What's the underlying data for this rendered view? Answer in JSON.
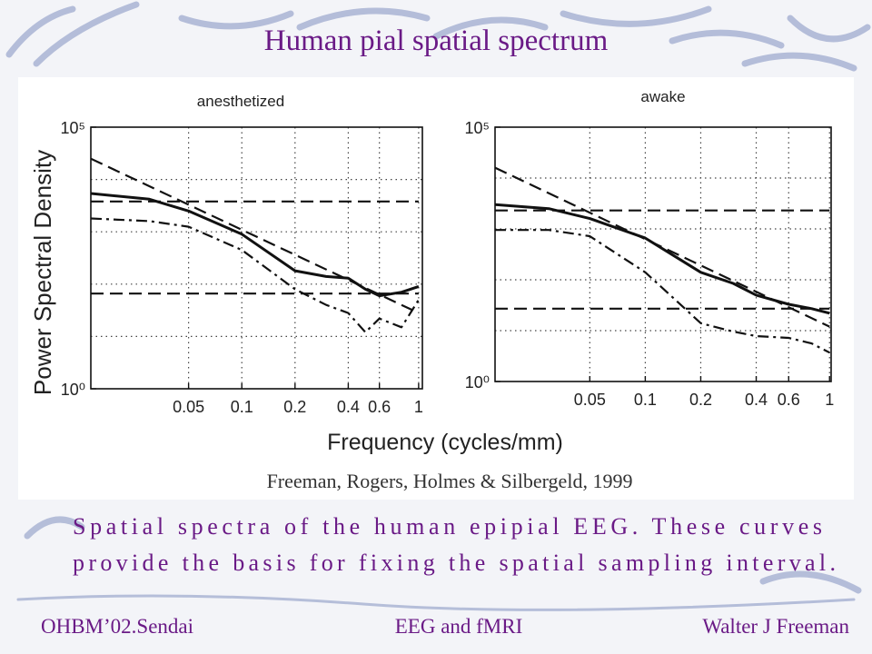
{
  "slide": {
    "title": "Human pial spatial spectrum",
    "caption": [
      "Spatial spectra of the human epipial EEG.  These curves",
      "provide the basis for fixing  the spatial sampling interval."
    ],
    "footer": {
      "left": "OHBM’02.Sendai",
      "center": "EEG and fMRI",
      "right": "Walter J Freeman"
    }
  },
  "figure": {
    "ylabel": "Power Spectral Density",
    "xlabel": "Frequency (cycles/mm)",
    "citation": "Freeman, Rogers, Holmes & Silbergeld, 1999"
  },
  "chart_data": [
    {
      "type": "line",
      "title": "anesthetized",
      "xscale": "log",
      "yscale": "log",
      "grid": true,
      "xlim": [
        0.014,
        1.05
      ],
      "ylim": [
        1,
        100000
      ],
      "xticks": [
        0.05,
        0.1,
        0.2,
        0.4,
        0.6,
        1
      ],
      "yticks": [
        {
          "value": 1,
          "label": "10⁰"
        },
        {
          "value": 100000,
          "label": "10⁵"
        }
      ],
      "ygrid": [
        10,
        100,
        1000,
        10000
      ],
      "series": [
        {
          "color": "#111111",
          "dash": "solid",
          "x": [
            0.014,
            0.03,
            0.05,
            0.1,
            0.2,
            0.3,
            0.4,
            0.5,
            0.6,
            0.8,
            1
          ],
          "values": [
            5400,
            4200,
            2500,
            900,
            180,
            140,
            130,
            80,
            60,
            70,
            90
          ]
        },
        {
          "color": "#111111",
          "dash": "dashdot",
          "x": [
            0.014,
            0.03,
            0.05,
            0.1,
            0.2,
            0.3,
            0.4,
            0.5,
            0.6,
            0.8,
            1
          ],
          "values": [
            1800,
            1600,
            1250,
            450,
            80,
            40,
            28,
            12,
            22,
            15,
            50
          ]
        },
        {
          "color": "#111111",
          "dash": "dashed",
          "x": [
            0.014,
            1
          ],
          "values": [
            25000,
            28
          ]
        },
        {
          "color": "#111111",
          "dash": "dashed",
          "x": [
            0.014,
            1
          ],
          "values": [
            3800,
            3800
          ]
        },
        {
          "color": "#111111",
          "dash": "dashed",
          "x": [
            0.014,
            1
          ],
          "values": [
            66,
            66
          ]
        }
      ]
    },
    {
      "type": "line",
      "title": "awake",
      "xscale": "log",
      "yscale": "log",
      "grid": true,
      "xlim": [
        0.0153,
        1.02
      ],
      "ylim": [
        1,
        100000
      ],
      "xticks": [
        0.05,
        0.1,
        0.2,
        0.4,
        0.6,
        1
      ],
      "yticks": [
        {
          "value": 1,
          "label": "10⁰"
        },
        {
          "value": 100000,
          "label": "10⁵"
        }
      ],
      "ygrid": [
        10,
        100,
        1000,
        10000
      ],
      "series": [
        {
          "color": "#111111",
          "dash": "solid",
          "x": [
            0.0153,
            0.03,
            0.05,
            0.1,
            0.2,
            0.3,
            0.4,
            0.6,
            0.8,
            1
          ],
          "values": [
            3000,
            2500,
            1600,
            660,
            140,
            85,
            50,
            33,
            27,
            22
          ]
        },
        {
          "color": "#111111",
          "dash": "dashdot",
          "x": [
            0.0153,
            0.03,
            0.05,
            0.1,
            0.2,
            0.3,
            0.4,
            0.6,
            0.8,
            1
          ],
          "values": [
            950,
            950,
            720,
            140,
            14,
            9.6,
            7.8,
            7.2,
            5.6,
            3.7
          ]
        },
        {
          "color": "#111111",
          "dash": "dashed",
          "x": [
            0.0153,
            1
          ],
          "values": [
            16000,
            12
          ]
        },
        {
          "color": "#111111",
          "dash": "dashed",
          "x": [
            0.0153,
            1
          ],
          "values": [
            2300,
            2300
          ]
        },
        {
          "color": "#111111",
          "dash": "dashed",
          "x": [
            0.0153,
            1
          ],
          "values": [
            27,
            27
          ]
        }
      ]
    }
  ]
}
